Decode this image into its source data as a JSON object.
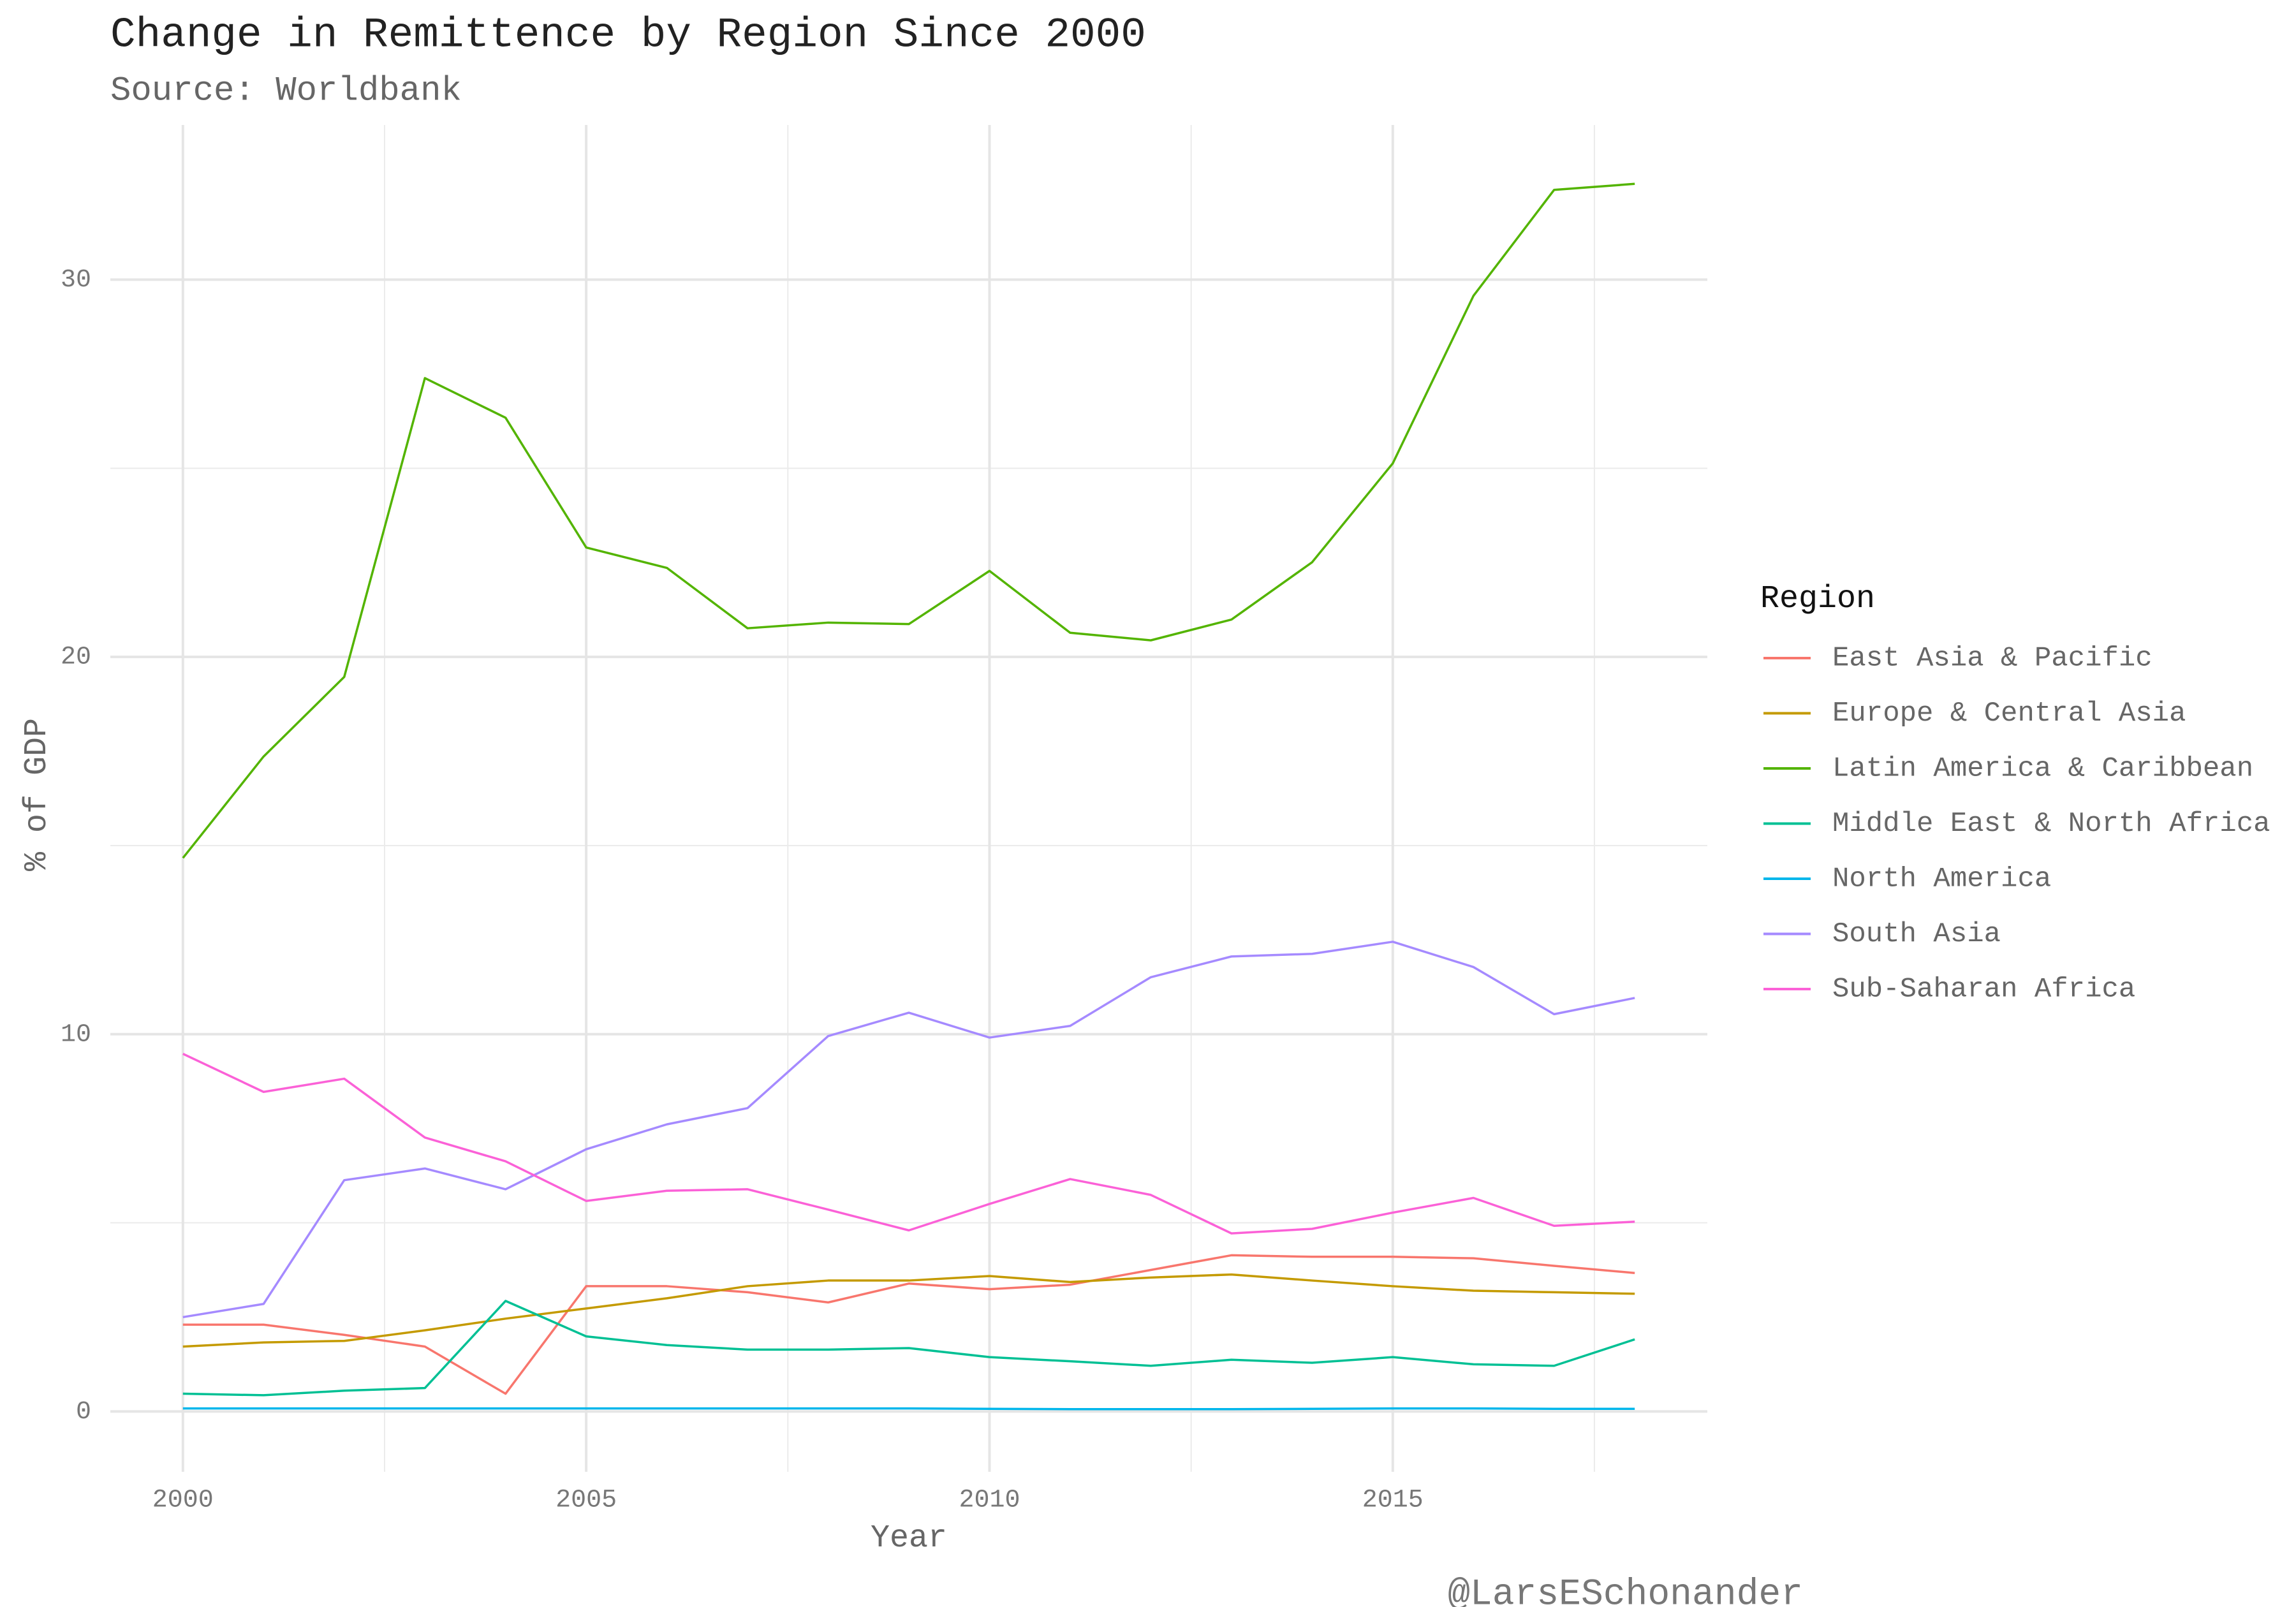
{
  "chart_data": {
    "type": "line",
    "title": "Change in Remittence by Region Since 2000",
    "subtitle": "Source: Worldbank",
    "x_label": "Year",
    "y_label": "% of GDP",
    "legend_title": "Region",
    "legend": "right",
    "caption": "@LarsESchonander",
    "grid": true,
    "minor_grid": true,
    "x": [
      2000,
      2001,
      2002,
      2003,
      2004,
      2005,
      2006,
      2007,
      2008,
      2009,
      2010,
      2011,
      2012,
      2013,
      2014,
      2015,
      2016,
      2017,
      2018
    ],
    "xlim": [
      1999.1,
      2018.9
    ],
    "xticks": [
      2000,
      2005,
      2010,
      2015
    ],
    "ylim": [
      -1.6,
      34.1
    ],
    "yticks": [
      0,
      10,
      20,
      30
    ],
    "series": [
      {
        "name": "East Asia & Pacific",
        "color": "#F8766D",
        "values": [
          2.3,
          2.3,
          2.03,
          1.72,
          0.47,
          3.32,
          3.32,
          3.16,
          2.89,
          3.39,
          3.24,
          3.36,
          3.75,
          4.14,
          4.1,
          4.1,
          4.06,
          3.86,
          3.67
        ]
      },
      {
        "name": "Europe & Central Asia",
        "color": "#C49A00",
        "values": [
          1.72,
          1.83,
          1.87,
          2.15,
          2.46,
          2.73,
          3.0,
          3.32,
          3.47,
          3.47,
          3.59,
          3.43,
          3.55,
          3.63,
          3.47,
          3.32,
          3.2,
          3.16,
          3.12
        ]
      },
      {
        "name": "Latin America & Caribbean",
        "color": "#53B400",
        "values": [
          14.67,
          17.36,
          19.47,
          27.39,
          26.34,
          22.9,
          22.36,
          20.76,
          20.91,
          20.87,
          22.28,
          20.64,
          20.44,
          20.99,
          22.51,
          25.13,
          29.57,
          32.38,
          32.54
        ]
      },
      {
        "name": "Middle East & North Africa",
        "color": "#00C094",
        "values": [
          0.47,
          0.43,
          0.55,
          0.62,
          2.93,
          1.99,
          1.76,
          1.64,
          1.64,
          1.68,
          1.44,
          1.33,
          1.21,
          1.37,
          1.29,
          1.44,
          1.25,
          1.21,
          1.91
        ]
      },
      {
        "name": "North America",
        "color": "#00B6EB",
        "values": [
          0.08,
          0.08,
          0.08,
          0.08,
          0.08,
          0.08,
          0.08,
          0.08,
          0.08,
          0.08,
          0.07,
          0.06,
          0.06,
          0.06,
          0.07,
          0.08,
          0.08,
          0.07,
          0.07
        ]
      },
      {
        "name": "South Asia",
        "color": "#A58AFF",
        "values": [
          2.5,
          2.85,
          6.13,
          6.44,
          5.89,
          6.95,
          7.61,
          8.04,
          9.95,
          10.57,
          9.91,
          10.22,
          11.51,
          12.06,
          12.13,
          12.45,
          11.78,
          10.53,
          10.96
        ]
      },
      {
        "name": "Sub-Saharan Africa",
        "color": "#FB61D7",
        "values": [
          9.48,
          8.47,
          8.82,
          7.26,
          6.63,
          5.58,
          5.85,
          5.89,
          5.35,
          4.8,
          5.5,
          6.16,
          5.74,
          4.72,
          4.84,
          5.27,
          5.66,
          4.92,
          5.03
        ]
      }
    ]
  }
}
